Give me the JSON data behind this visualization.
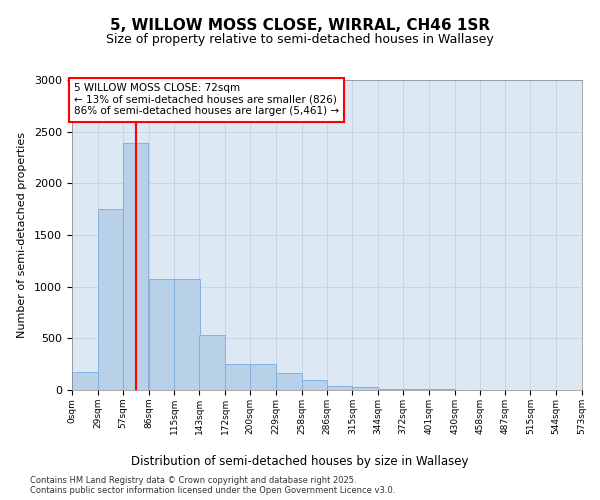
{
  "title_line1": "5, WILLOW MOSS CLOSE, WIRRAL, CH46 1SR",
  "title_line2": "Size of property relative to semi-detached houses in Wallasey",
  "xlabel": "Distribution of semi-detached houses by size in Wallasey",
  "ylabel": "Number of semi-detached properties",
  "bar_color": "#b8d0e8",
  "bar_edge_color": "#7aabe0",
  "grid_color": "#c8d4e0",
  "background_color": "#dce8f4",
  "annotation_line1": "5 WILLOW MOSS CLOSE: 72sqm",
  "annotation_line2": "← 13% of semi-detached houses are smaller (826)",
  "annotation_line3": "86% of semi-detached houses are larger (5,461) →",
  "redline_x": 72,
  "footer_line1": "Contains HM Land Registry data © Crown copyright and database right 2025.",
  "footer_line2": "Contains public sector information licensed under the Open Government Licence v3.0.",
  "bin_labels": [
    "0sqm",
    "29sqm",
    "57sqm",
    "86sqm",
    "115sqm",
    "143sqm",
    "172sqm",
    "200sqm",
    "229sqm",
    "258sqm",
    "286sqm",
    "315sqm",
    "344sqm",
    "372sqm",
    "401sqm",
    "430sqm",
    "458sqm",
    "487sqm",
    "515sqm",
    "544sqm",
    "573sqm"
  ],
  "bin_edges": [
    0,
    29,
    57,
    86,
    115,
    143,
    172,
    200,
    229,
    258,
    286,
    315,
    344,
    372,
    401,
    430,
    458,
    487,
    515,
    544,
    573
  ],
  "bar_heights": [
    170,
    1750,
    2390,
    1070,
    1070,
    530,
    250,
    250,
    165,
    100,
    40,
    30,
    10,
    5,
    5,
    0,
    0,
    0,
    0,
    0
  ],
  "ylim": [
    0,
    3000
  ],
  "yticks": [
    0,
    500,
    1000,
    1500,
    2000,
    2500,
    3000
  ]
}
